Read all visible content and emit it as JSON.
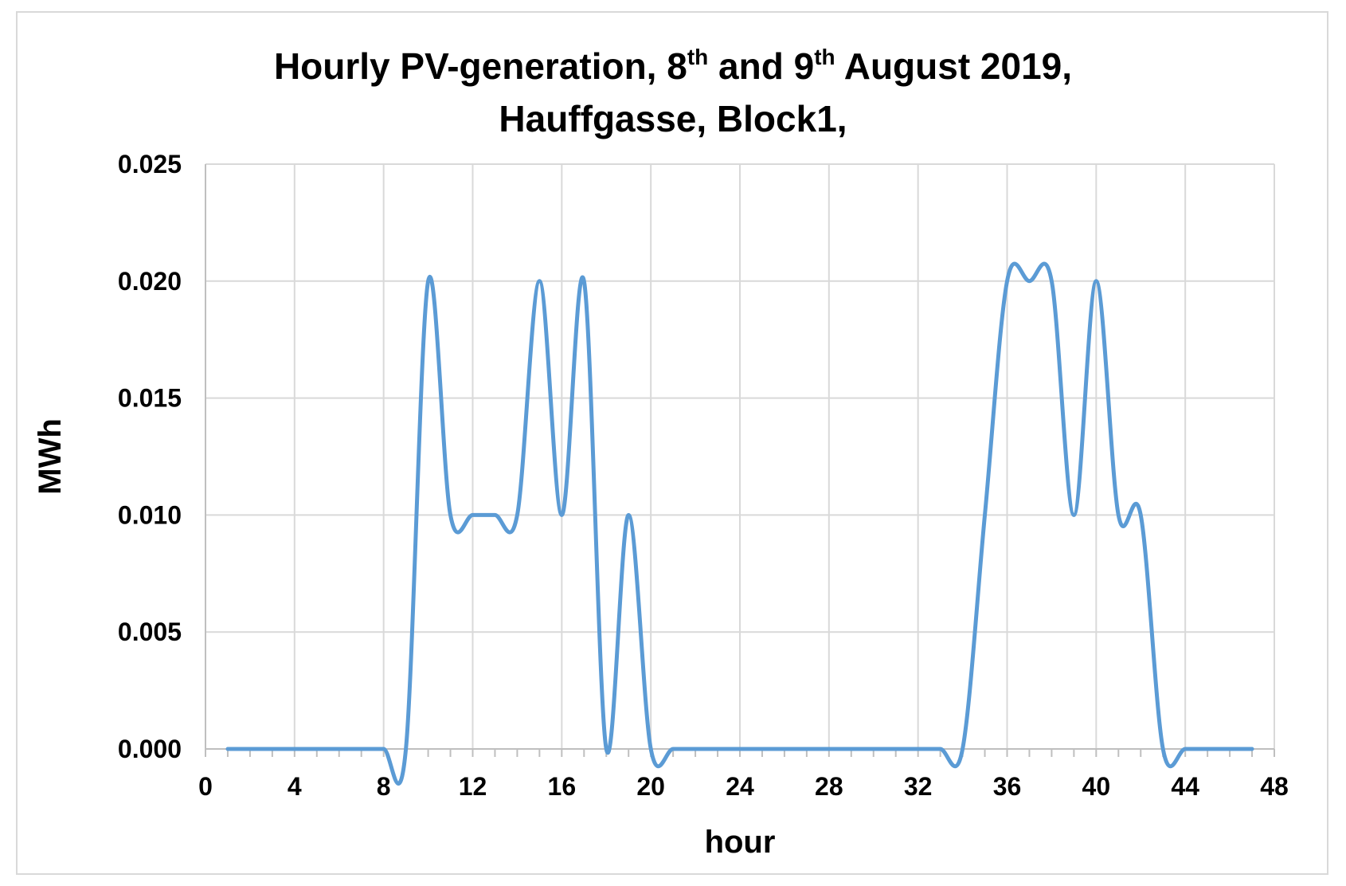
{
  "chart_data": {
    "type": "line",
    "title": {
      "pre": "Hourly PV-generation, 8",
      "sup1": "th",
      "mid": " and 9",
      "sup2": "th",
      "post": " August 2019,",
      "line2": "Hauffgasse, Block1,"
    },
    "xlabel": "hour",
    "ylabel": "MWh",
    "xlim": [
      0,
      48
    ],
    "ylim": [
      0,
      0.025
    ],
    "xticks": [
      0,
      4,
      8,
      12,
      16,
      20,
      24,
      28,
      32,
      36,
      40,
      44,
      48
    ],
    "xtick_labels": [
      "0",
      "4",
      "8",
      "12",
      "16",
      "20",
      "24",
      "28",
      "32",
      "36",
      "40",
      "44",
      "48"
    ],
    "yticks": [
      0,
      0.005,
      0.01,
      0.015,
      0.02,
      0.025
    ],
    "ytick_labels": [
      "0.000",
      "0.005",
      "0.010",
      "0.015",
      "0.020",
      "0.025"
    ],
    "grid": true,
    "legend": "none",
    "smooth": true,
    "series": [
      {
        "color": "#5b9bd5",
        "x": [
          1,
          2,
          3,
          4,
          5,
          6,
          7,
          8,
          9,
          10,
          11,
          12,
          13,
          14,
          15,
          16,
          17,
          18,
          19,
          20,
          21,
          22,
          23,
          24,
          25,
          26,
          27,
          28,
          29,
          30,
          31,
          32,
          33,
          34,
          35,
          36,
          37,
          38,
          39,
          40,
          41,
          42,
          43,
          44,
          45,
          46,
          47
        ],
        "y": [
          0,
          0,
          0,
          0,
          0,
          0,
          0,
          0,
          0,
          0.02,
          0.01,
          0.01,
          0.01,
          0.01,
          0.02,
          0.01,
          0.02,
          0,
          0.01,
          0,
          0,
          0,
          0,
          0,
          0,
          0,
          0,
          0,
          0,
          0,
          0,
          0,
          0,
          0,
          0.01,
          0.02,
          0.02,
          0.02,
          0.01,
          0.02,
          0.01,
          0.01,
          0,
          0,
          0,
          0,
          0
        ]
      }
    ]
  }
}
